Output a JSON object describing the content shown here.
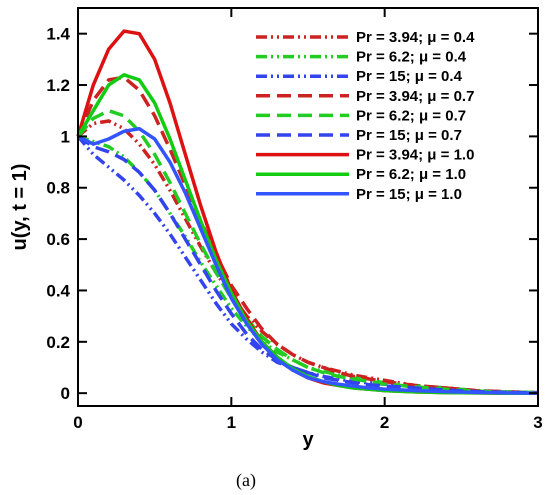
{
  "chart_data": {
    "type": "line",
    "title": "",
    "xlabel": "y",
    "ylabel": "u(y, t = 1)",
    "xlim": [
      0,
      3
    ],
    "ylim": [
      -0.05,
      1.5
    ],
    "xticks": [
      0,
      1,
      2,
      3
    ],
    "yticks": [
      0,
      0.2,
      0.4,
      0.6,
      0.8,
      1,
      1.2,
      1.4
    ],
    "xtick_labels": [
      "0",
      "1",
      "2",
      "3"
    ],
    "ytick_labels": [
      "0",
      "0.2",
      "0.4",
      "0.6",
      "0.8",
      "1",
      "1.2",
      "1.4"
    ],
    "grid": false,
    "legend_position": "top-right",
    "caption": "(a)",
    "x": [
      0,
      0.1,
      0.2,
      0.3,
      0.4,
      0.5,
      0.6,
      0.7,
      0.8,
      0.9,
      1.0,
      1.1,
      1.2,
      1.3,
      1.4,
      1.5,
      1.6,
      1.7,
      1.8,
      1.9,
      2.0,
      2.2,
      2.4,
      2.6,
      2.8,
      3.0
    ],
    "series": [
      {
        "name": "Pr = 3.94; μ = 0.4",
        "color": "#cc2222",
        "dash": "dashdotdot",
        "values": [
          1.0,
          1.05,
          1.06,
          1.03,
          0.97,
          0.89,
          0.79,
          0.68,
          0.57,
          0.47,
          0.38,
          0.3,
          0.24,
          0.19,
          0.15,
          0.12,
          0.1,
          0.085,
          0.07,
          0.06,
          0.05,
          0.03,
          0.02,
          0.01,
          0.005,
          0.002
        ]
      },
      {
        "name": "Pr = 6.2; μ = 0.4",
        "color": "#22cc22",
        "dash": "dashdotdot",
        "values": [
          1.0,
          0.98,
          0.96,
          0.92,
          0.86,
          0.79,
          0.7,
          0.61,
          0.51,
          0.42,
          0.33,
          0.26,
          0.2,
          0.16,
          0.13,
          0.1,
          0.085,
          0.07,
          0.06,
          0.05,
          0.04,
          0.03,
          0.02,
          0.01,
          0.004,
          0.002
        ]
      },
      {
        "name": "Pr = 15; μ = 0.4",
        "color": "#3344ee",
        "dash": "dashdotdot",
        "values": [
          1.0,
          0.93,
          0.88,
          0.83,
          0.77,
          0.7,
          0.62,
          0.53,
          0.44,
          0.35,
          0.27,
          0.21,
          0.16,
          0.12,
          0.1,
          0.08,
          0.065,
          0.055,
          0.045,
          0.04,
          0.035,
          0.025,
          0.015,
          0.008,
          0.004,
          0.002
        ]
      },
      {
        "name": "Pr = 3.94; μ = 0.7",
        "color": "#cc2222",
        "dash": "dashed",
        "values": [
          1.0,
          1.14,
          1.22,
          1.23,
          1.18,
          1.08,
          0.95,
          0.81,
          0.67,
          0.54,
          0.42,
          0.33,
          0.25,
          0.19,
          0.15,
          0.12,
          0.1,
          0.08,
          0.065,
          0.055,
          0.045,
          0.03,
          0.02,
          0.01,
          0.005,
          0.002
        ]
      },
      {
        "name": "Pr = 6.2; μ = 0.7",
        "color": "#22cc22",
        "dash": "dashed",
        "values": [
          1.0,
          1.07,
          1.1,
          1.08,
          1.02,
          0.93,
          0.82,
          0.7,
          0.58,
          0.47,
          0.37,
          0.29,
          0.22,
          0.17,
          0.13,
          0.1,
          0.08,
          0.065,
          0.055,
          0.045,
          0.035,
          0.025,
          0.015,
          0.008,
          0.004,
          0.002
        ]
      },
      {
        "name": "Pr = 15; μ = 0.7",
        "color": "#3344ee",
        "dash": "dashed",
        "values": [
          1.0,
          0.96,
          0.94,
          0.91,
          0.86,
          0.79,
          0.7,
          0.6,
          0.5,
          0.4,
          0.31,
          0.23,
          0.17,
          0.13,
          0.1,
          0.08,
          0.06,
          0.05,
          0.04,
          0.033,
          0.028,
          0.02,
          0.012,
          0.006,
          0.003,
          0.001
        ]
      },
      {
        "name": "Pr = 3.94; μ = 1.0",
        "color": "#dd1111",
        "dash": "solid",
        "values": [
          1.0,
          1.2,
          1.34,
          1.41,
          1.4,
          1.3,
          1.13,
          0.93,
          0.73,
          0.55,
          0.4,
          0.29,
          0.2,
          0.14,
          0.09,
          0.06,
          0.04,
          0.03,
          0.02,
          0.015,
          0.01,
          0.005,
          0.002,
          0.001,
          0.0,
          0.0
        ]
      },
      {
        "name": "Pr = 6.2; μ = 1.0",
        "color": "#11cc11",
        "dash": "solid",
        "values": [
          1.0,
          1.1,
          1.2,
          1.24,
          1.22,
          1.13,
          0.99,
          0.83,
          0.67,
          0.52,
          0.39,
          0.28,
          0.2,
          0.14,
          0.095,
          0.065,
          0.045,
          0.03,
          0.02,
          0.015,
          0.01,
          0.005,
          0.002,
          0.001,
          0.0,
          0.0
        ]
      },
      {
        "name": "Pr = 15; μ = 1.0",
        "color": "#3355ff",
        "dash": "solid",
        "values": [
          1.0,
          0.97,
          0.99,
          1.02,
          1.03,
          0.99,
          0.9,
          0.78,
          0.64,
          0.5,
          0.37,
          0.27,
          0.19,
          0.13,
          0.09,
          0.06,
          0.045,
          0.035,
          0.027,
          0.02,
          0.016,
          0.01,
          0.006,
          0.003,
          0.001,
          0.0
        ]
      }
    ]
  }
}
